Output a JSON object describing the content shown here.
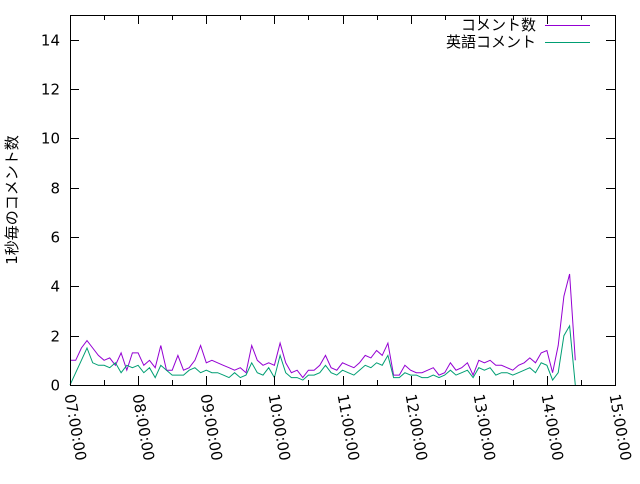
{
  "chart_data": {
    "type": "line",
    "title": "",
    "xlabel": "",
    "ylabel": "1秒毎のコメント数",
    "xlim": [
      "07:00:00",
      "15:00:00"
    ],
    "ylim": [
      0,
      15
    ],
    "x_tick_labels": [
      "07:00:00",
      "08:00:00",
      "09:00:00",
      "10:00:00",
      "11:00:00",
      "12:00:00",
      "13:00:00",
      "14:00:00",
      "15:00:00"
    ],
    "y_tick_labels": [
      "0",
      "2",
      "4",
      "6",
      "8",
      "10",
      "12",
      "14"
    ],
    "grid": false,
    "legend_position": "top-right",
    "x_start": "07:00:00",
    "x_step_minutes": 5,
    "series": [
      {
        "name": "コメント数",
        "color": "#9400d3",
        "values": [
          1.0,
          1.0,
          1.5,
          1.8,
          1.5,
          1.2,
          1.0,
          1.1,
          0.8,
          1.3,
          0.6,
          1.3,
          1.3,
          0.8,
          1.0,
          0.7,
          1.6,
          0.6,
          0.6,
          1.2,
          0.6,
          0.7,
          1.0,
          1.6,
          0.9,
          1.0,
          0.9,
          0.8,
          0.7,
          0.6,
          0.7,
          0.5,
          1.6,
          1.0,
          0.8,
          0.9,
          0.8,
          1.7,
          0.9,
          0.5,
          0.6,
          0.3,
          0.6,
          0.6,
          0.8,
          1.2,
          0.7,
          0.6,
          0.9,
          0.8,
          0.7,
          0.9,
          1.2,
          1.1,
          1.4,
          1.2,
          1.7,
          0.4,
          0.4,
          0.8,
          0.6,
          0.5,
          0.5,
          0.6,
          0.7,
          0.4,
          0.5,
          0.9,
          0.6,
          0.7,
          0.9,
          0.4,
          1.0,
          0.9,
          1.0,
          0.8,
          0.8,
          0.7,
          0.6,
          0.8,
          0.9,
          1.1,
          0.9,
          1.3,
          1.4,
          0.5,
          1.6,
          3.6,
          4.5,
          1.0
        ]
      },
      {
        "name": "英語コメント",
        "color": "#009e73",
        "values": [
          0.0,
          0.5,
          1.0,
          1.5,
          0.9,
          0.8,
          0.8,
          0.7,
          0.9,
          0.5,
          0.8,
          0.7,
          0.8,
          0.5,
          0.7,
          0.3,
          0.8,
          0.6,
          0.4,
          0.4,
          0.4,
          0.6,
          0.7,
          0.5,
          0.6,
          0.5,
          0.5,
          0.4,
          0.3,
          0.5,
          0.3,
          0.4,
          0.9,
          0.5,
          0.4,
          0.7,
          0.3,
          1.2,
          0.5,
          0.3,
          0.3,
          0.2,
          0.4,
          0.4,
          0.5,
          0.8,
          0.5,
          0.4,
          0.6,
          0.5,
          0.4,
          0.6,
          0.8,
          0.7,
          0.9,
          0.8,
          1.2,
          0.3,
          0.3,
          0.5,
          0.4,
          0.4,
          0.3,
          0.3,
          0.4,
          0.3,
          0.4,
          0.6,
          0.4,
          0.5,
          0.6,
          0.3,
          0.7,
          0.6,
          0.7,
          0.4,
          0.5,
          0.5,
          0.4,
          0.5,
          0.6,
          0.7,
          0.5,
          0.9,
          0.8,
          0.2,
          0.5,
          2.0,
          2.4,
          0.0
        ]
      }
    ]
  }
}
